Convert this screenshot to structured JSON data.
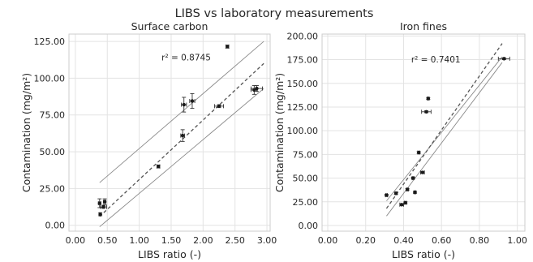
{
  "figure_title": "LIBS vs laboratory measurements",
  "chart_data": [
    {
      "type": "scatter",
      "title": "Surface carbon",
      "xlabel": "LIBS ratio (-)",
      "ylabel": "Contamination (mg/m²)",
      "xlim": [
        -0.1,
        3.05
      ],
      "ylim": [
        -4,
        130
      ],
      "xticks": [
        0,
        0.5,
        1,
        1.5,
        2,
        2.5,
        3
      ],
      "xtick_labels": [
        "0.00",
        "0.50",
        "1.00",
        "1.50",
        "2.00",
        "2.50",
        "3.00"
      ],
      "yticks": [
        0,
        25,
        50,
        75,
        100,
        125
      ],
      "ytick_labels": [
        "0.00",
        "25.00",
        "50.00",
        "75.00",
        "100.00",
        "125.00"
      ],
      "grid": true,
      "annotation": "r² = 0.8745",
      "annotation_pos": [
        1.35,
        112
      ],
      "fit_line": {
        "x": [
          0.38,
          2.95
        ],
        "y": [
          6,
          110
        ]
      },
      "band_upper": {
        "x": [
          0.38,
          2.95
        ],
        "y": [
          29,
          125
        ]
      },
      "band_lower": {
        "x": [
          0.38,
          2.95
        ],
        "y": [
          -1,
          93
        ]
      },
      "points": [
        {
          "x": 0.38,
          "y": 15.0,
          "xerr": 0.02,
          "yerr": 3
        },
        {
          "x": 0.39,
          "y": 7.5,
          "xerr": 0.01,
          "yerr": 1
        },
        {
          "x": 0.44,
          "y": 12.5,
          "xerr": 0.05,
          "yerr": 1
        },
        {
          "x": 0.46,
          "y": 16.0,
          "xerr": 0.02,
          "yerr": 2
        },
        {
          "x": 1.3,
          "y": 40.0,
          "xerr": 0.02,
          "yerr": 1
        },
        {
          "x": 1.68,
          "y": 61.0,
          "xerr": 0.03,
          "yerr": 4
        },
        {
          "x": 1.7,
          "y": 82.0,
          "xerr": 0.04,
          "yerr": 5
        },
        {
          "x": 1.83,
          "y": 84.5,
          "xerr": 0.04,
          "yerr": 5
        },
        {
          "x": 2.25,
          "y": 81.0,
          "xerr": 0.07,
          "yerr": 1
        },
        {
          "x": 2.38,
          "y": 121.5,
          "xerr": 0.02,
          "yerr": 1
        },
        {
          "x": 2.8,
          "y": 92.0,
          "xerr": 0.05,
          "yerr": 3
        },
        {
          "x": 2.84,
          "y": 93.0,
          "xerr": 0.09,
          "yerr": 2
        }
      ]
    },
    {
      "type": "scatter",
      "title": "Iron fines",
      "xlabel": "LIBS ratio (-)",
      "ylabel": "Contamination (mg/m²)",
      "xlim": [
        -0.03,
        1.04
      ],
      "ylim": [
        -6,
        202
      ],
      "xticks": [
        0,
        0.2,
        0.4,
        0.6,
        0.8,
        1.0
      ],
      "xtick_labels": [
        "0.00",
        "0.20",
        "0.40",
        "0.60",
        "0.80",
        "1.00"
      ],
      "yticks": [
        0,
        25,
        50,
        75,
        100,
        125,
        150,
        175,
        200
      ],
      "ytick_labels": [
        "0.00",
        "25.00",
        "50.00",
        "75.00",
        "100.00",
        "125.00",
        "150.00",
        "175.00",
        "200.00"
      ],
      "grid": true,
      "annotation": "r² = 0.7401",
      "annotation_pos": [
        0.44,
        172
      ],
      "fit_line": {
        "x": [
          0.31,
          0.92
        ],
        "y": [
          18,
          192
        ]
      },
      "band_upper": {
        "x": [
          0.31,
          0.92
        ],
        "y": [
          26,
          178
        ]
      },
      "band_lower": {
        "x": [
          0.31,
          0.92
        ],
        "y": [
          10,
          172
        ]
      },
      "points": [
        {
          "x": 0.31,
          "y": 32.0,
          "xerr": 0.005,
          "yerr": 1
        },
        {
          "x": 0.36,
          "y": 34.0,
          "xerr": 0.005,
          "yerr": 1
        },
        {
          "x": 0.39,
          "y": 22.0,
          "xerr": 0.01,
          "yerr": 1
        },
        {
          "x": 0.41,
          "y": 24.0,
          "xerr": 0.005,
          "yerr": 1
        },
        {
          "x": 0.42,
          "y": 38.0,
          "xerr": 0.005,
          "yerr": 1
        },
        {
          "x": 0.45,
          "y": 50.0,
          "xerr": 0.005,
          "yerr": 1
        },
        {
          "x": 0.46,
          "y": 35.0,
          "xerr": 0.005,
          "yerr": 1
        },
        {
          "x": 0.48,
          "y": 77.0,
          "xerr": 0.005,
          "yerr": 1
        },
        {
          "x": 0.5,
          "y": 56.0,
          "xerr": 0.01,
          "yerr": 1
        },
        {
          "x": 0.52,
          "y": 120.0,
          "xerr": 0.025,
          "yerr": 1
        },
        {
          "x": 0.53,
          "y": 134.0,
          "xerr": 0.005,
          "yerr": 1
        },
        {
          "x": 0.93,
          "y": 176.0,
          "xerr": 0.03,
          "yerr": 1
        }
      ]
    }
  ]
}
